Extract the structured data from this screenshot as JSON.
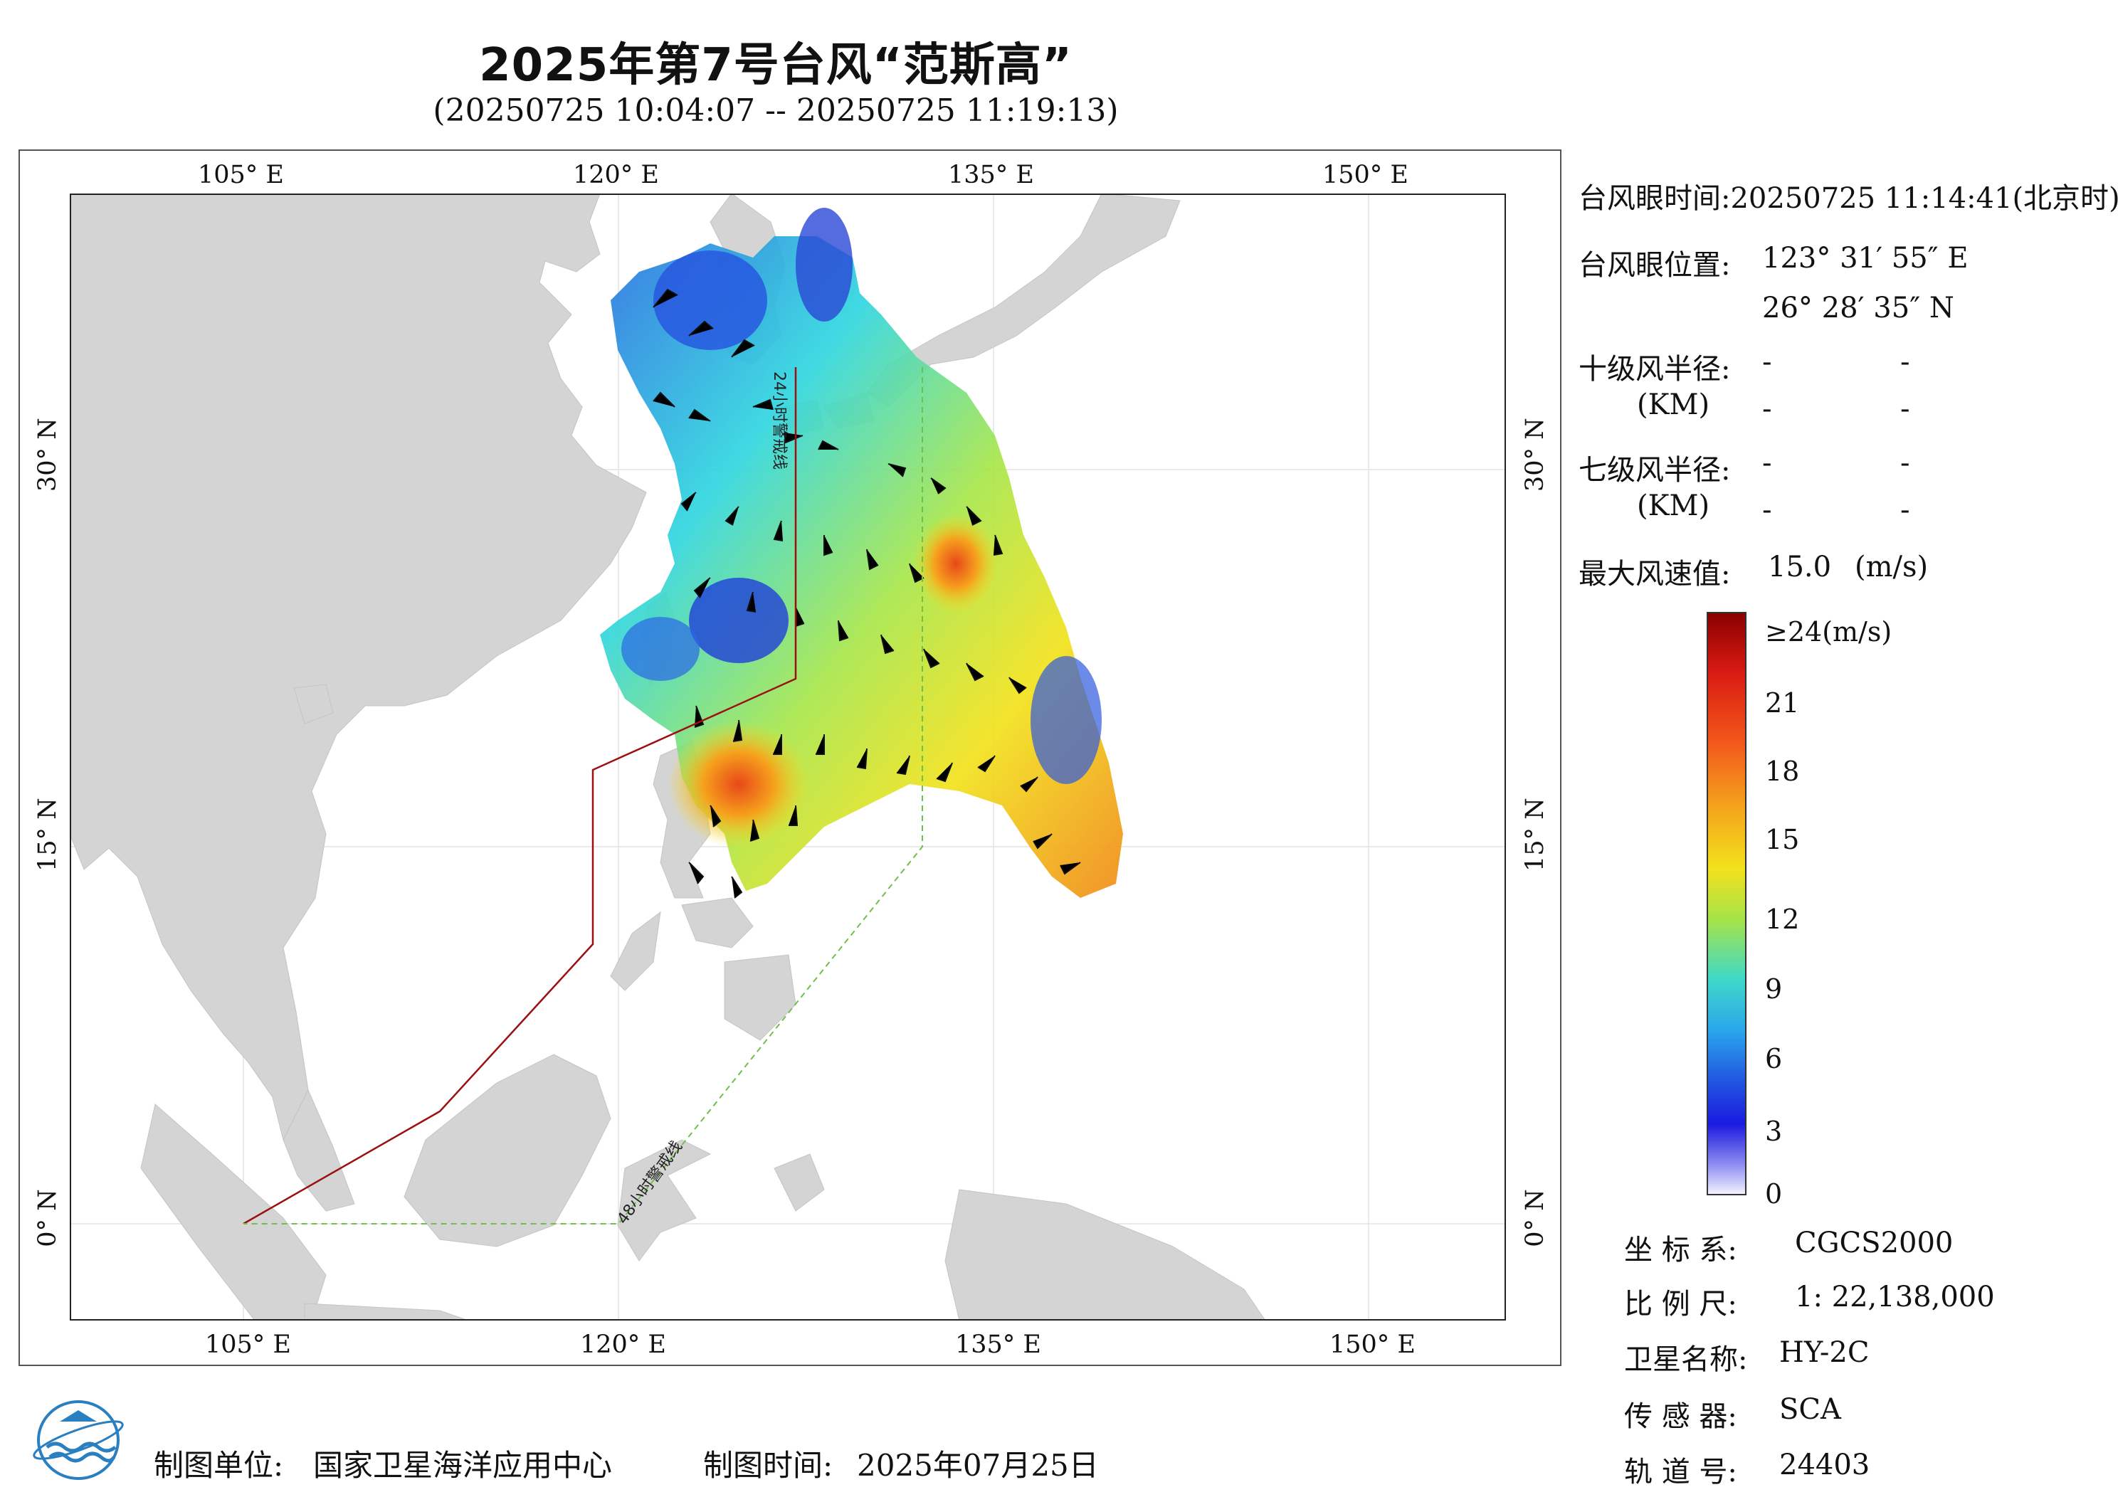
{
  "header": {
    "title": "2025年第7号台风“范斯高”",
    "subtitle": "(20250725 10:04:07 -- 20250725 11:19:13)"
  },
  "map": {
    "top_lon_labels": [
      "105° E",
      "120° E",
      "135° E",
      "150° E"
    ],
    "bottom_lon_labels": [
      "105° E",
      "120° E",
      "135° E",
      "150° E"
    ],
    "lat_labels": [
      "30° N",
      "15° N",
      "0° N"
    ],
    "warning_24h_label": "24小时警戒线",
    "warning_48h_label": "48小时警戒线",
    "colors": {
      "land": "#d4d4d4",
      "sea": "#ffffff",
      "warning_24h": "#9b1010",
      "warning_48h": "#6fbf4a"
    }
  },
  "info": {
    "eye_time_label": "台风眼时间:",
    "eye_time_value": "20250725 11:14:41(北京时)",
    "eye_pos_label": "台风眼位置:",
    "eye_lon": "123° 31′ 55″ E",
    "eye_lat": "26° 28′ 35″ N",
    "r10_label": "十级风半径:",
    "r10_unit": "(KM)",
    "r7_label": "七级风半径:",
    "r7_unit": "(KM)",
    "dash": "-",
    "max_label": "最大风速值:",
    "max_value": "15.0",
    "max_unit": "(m/s)"
  },
  "colorbar": {
    "labels": [
      "≥24(m/s)",
      "21",
      "18",
      "15",
      "12",
      "9",
      "6",
      "3",
      "0"
    ]
  },
  "meta": {
    "coord_label": "坐 标 系:",
    "coord_value": "CGCS2000",
    "scale_label": "比 例 尺:",
    "scale_value": "1: 22,138,000",
    "sat_label": "卫星名称:",
    "sat_value": "HY-2C",
    "sensor_label": "传 感 器:",
    "sensor_value": "SCA",
    "orbit_label": "轨 道 号:",
    "orbit_value": "24403"
  },
  "footer": {
    "org_label": "制图单位:",
    "org_value": "国家卫星海洋应用中心",
    "date_label": "制图时间:",
    "date_value": "2025年07月25日"
  }
}
